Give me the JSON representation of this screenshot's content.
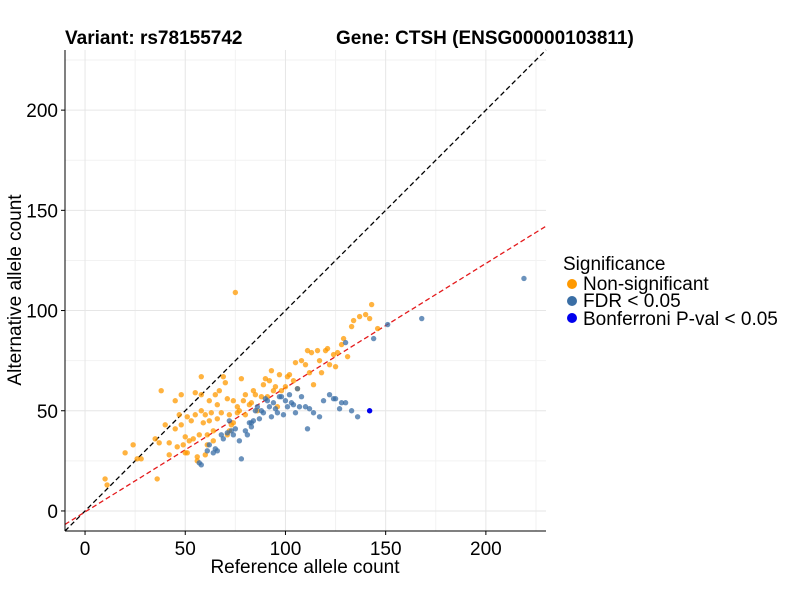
{
  "chart_data": {
    "type": "scatter",
    "titles": {
      "variant": "Variant: rs78155742",
      "gene": "Gene: CTSH (ENSG00000103811)"
    },
    "xlabel": "Reference allele count",
    "ylabel": "Alternative allele count",
    "xlim": [
      -10,
      230
    ],
    "ylim": [
      -10,
      230
    ],
    "xticks": [
      0,
      50,
      100,
      150,
      200
    ],
    "yticks": [
      0,
      50,
      100,
      150,
      200
    ],
    "xtick_labels": [
      "0",
      "50",
      "100",
      "150",
      "200"
    ],
    "ytick_labels": [
      "0",
      "50",
      "100",
      "150",
      "200"
    ],
    "grid": true,
    "reference_lines": [
      {
        "name": "identity-line",
        "slope": 1.0,
        "intercept": 0,
        "color": "#000000",
        "style": "dashed"
      },
      {
        "name": "fit-line",
        "slope": 0.62,
        "intercept": -0.5,
        "color": "#e41a1c",
        "style": "dashed"
      }
    ],
    "legend": {
      "title": "Significance",
      "position": "right",
      "entries": [
        {
          "label": "Non-significant",
          "color": "#ff9900"
        },
        {
          "label": "FDR < 0.05",
          "color": "#3a6ea5"
        },
        {
          "label": "Bonferroni P-val < 0.05",
          "color": "#0000ee"
        }
      ]
    },
    "series": [
      {
        "name": "Non-significant",
        "color": "#ff9900",
        "points": [
          [
            10,
            16
          ],
          [
            11,
            13
          ],
          [
            20,
            29
          ],
          [
            24,
            33
          ],
          [
            26,
            26
          ],
          [
            28,
            26
          ],
          [
            36,
            16
          ],
          [
            37,
            34
          ],
          [
            35,
            36
          ],
          [
            38,
            60
          ],
          [
            40,
            43
          ],
          [
            42,
            28
          ],
          [
            42,
            34
          ],
          [
            45,
            41
          ],
          [
            45,
            55
          ],
          [
            46,
            32
          ],
          [
            47,
            48
          ],
          [
            48,
            43
          ],
          [
            48,
            58
          ],
          [
            49,
            33
          ],
          [
            50,
            37
          ],
          [
            50,
            29
          ],
          [
            51,
            29
          ],
          [
            51,
            47
          ],
          [
            52,
            35
          ],
          [
            53,
            45
          ],
          [
            54,
            36
          ],
          [
            55,
            48
          ],
          [
            55,
            59
          ],
          [
            56,
            25
          ],
          [
            56,
            27
          ],
          [
            57,
            38
          ],
          [
            58,
            50
          ],
          [
            58,
            58
          ],
          [
            58,
            67
          ],
          [
            59,
            44
          ],
          [
            60,
            48
          ],
          [
            60,
            28
          ],
          [
            61,
            33
          ],
          [
            61,
            38
          ],
          [
            62,
            45
          ],
          [
            62,
            55
          ],
          [
            63,
            49
          ],
          [
            64,
            35
          ],
          [
            64,
            40
          ],
          [
            65,
            58
          ],
          [
            66,
            53
          ],
          [
            66,
            46
          ],
          [
            67,
            60
          ],
          [
            68,
            49
          ],
          [
            69,
            67
          ],
          [
            70,
            64
          ],
          [
            71,
            56
          ],
          [
            71,
            38
          ],
          [
            72,
            40
          ],
          [
            72,
            48
          ],
          [
            73,
            43
          ],
          [
            74,
            44
          ],
          [
            74,
            55
          ],
          [
            75,
            109
          ],
          [
            76,
            52
          ],
          [
            76,
            49
          ],
          [
            77,
            50
          ],
          [
            78,
            66
          ],
          [
            79,
            55
          ],
          [
            80,
            58
          ],
          [
            80,
            48
          ],
          [
            82,
            53
          ],
          [
            83,
            54
          ],
          [
            84,
            60
          ],
          [
            85,
            58
          ],
          [
            86,
            50
          ],
          [
            88,
            57
          ],
          [
            89,
            63
          ],
          [
            90,
            66
          ],
          [
            91,
            57
          ],
          [
            92,
            65
          ],
          [
            93,
            70
          ],
          [
            94,
            60
          ],
          [
            95,
            62
          ],
          [
            96,
            52
          ],
          [
            97,
            68
          ],
          [
            98,
            60
          ],
          [
            100,
            62
          ],
          [
            101,
            67
          ],
          [
            102,
            68
          ],
          [
            104,
            65
          ],
          [
            105,
            74
          ],
          [
            106,
            61
          ],
          [
            108,
            75
          ],
          [
            110,
            73
          ],
          [
            111,
            80
          ],
          [
            112,
            69
          ],
          [
            113,
            79
          ],
          [
            114,
            63
          ],
          [
            116,
            80
          ],
          [
            117,
            75
          ],
          [
            118,
            69
          ],
          [
            120,
            80
          ],
          [
            121,
            81
          ],
          [
            122,
            73
          ],
          [
            124,
            78
          ],
          [
            125,
            72
          ],
          [
            126,
            79
          ],
          [
            128,
            83
          ],
          [
            129,
            86
          ],
          [
            131,
            77
          ],
          [
            133,
            92
          ],
          [
            134,
            95
          ],
          [
            137,
            97
          ],
          [
            140,
            98
          ],
          [
            142,
            96
          ],
          [
            143,
            103
          ],
          [
            146,
            91
          ]
        ]
      },
      {
        "name": "FDR < 0.05",
        "color": "#3a6ea5",
        "points": [
          [
            57,
            24
          ],
          [
            58,
            23
          ],
          [
            61,
            30
          ],
          [
            62,
            33
          ],
          [
            64,
            29
          ],
          [
            65,
            31
          ],
          [
            66,
            30
          ],
          [
            68,
            38
          ],
          [
            69,
            36
          ],
          [
            71,
            39
          ],
          [
            72,
            45
          ],
          [
            73,
            40
          ],
          [
            74,
            38
          ],
          [
            75,
            41
          ],
          [
            77,
            35
          ],
          [
            78,
            26
          ],
          [
            80,
            40
          ],
          [
            81,
            38
          ],
          [
            82,
            44
          ],
          [
            83,
            44
          ],
          [
            83,
            42
          ],
          [
            84,
            45
          ],
          [
            85,
            50
          ],
          [
            86,
            52
          ],
          [
            87,
            46
          ],
          [
            88,
            50
          ],
          [
            89,
            49
          ],
          [
            90,
            56
          ],
          [
            91,
            55
          ],
          [
            92,
            52
          ],
          [
            93,
            47
          ],
          [
            94,
            54
          ],
          [
            95,
            51
          ],
          [
            96,
            49
          ],
          [
            97,
            57
          ],
          [
            98,
            57
          ],
          [
            99,
            48
          ],
          [
            100,
            55
          ],
          [
            101,
            52
          ],
          [
            102,
            58
          ],
          [
            103,
            54
          ],
          [
            104,
            53
          ],
          [
            105,
            49
          ],
          [
            106,
            61
          ],
          [
            107,
            52
          ],
          [
            108,
            57
          ],
          [
            110,
            52
          ],
          [
            111,
            41
          ],
          [
            112,
            51
          ],
          [
            114,
            49
          ],
          [
            117,
            47
          ],
          [
            119,
            55
          ],
          [
            122,
            58
          ],
          [
            124,
            56
          ],
          [
            125,
            56
          ],
          [
            127,
            51
          ],
          [
            128,
            54
          ],
          [
            130,
            84
          ],
          [
            130,
            54
          ],
          [
            133,
            50
          ],
          [
            136,
            47
          ],
          [
            144,
            86
          ],
          [
            151,
            93
          ],
          [
            168,
            96
          ],
          [
            219,
            116
          ]
        ]
      },
      {
        "name": "Bonferroni P-val < 0.05",
        "color": "#0000ee",
        "points": [
          [
            142,
            50
          ]
        ]
      }
    ]
  }
}
